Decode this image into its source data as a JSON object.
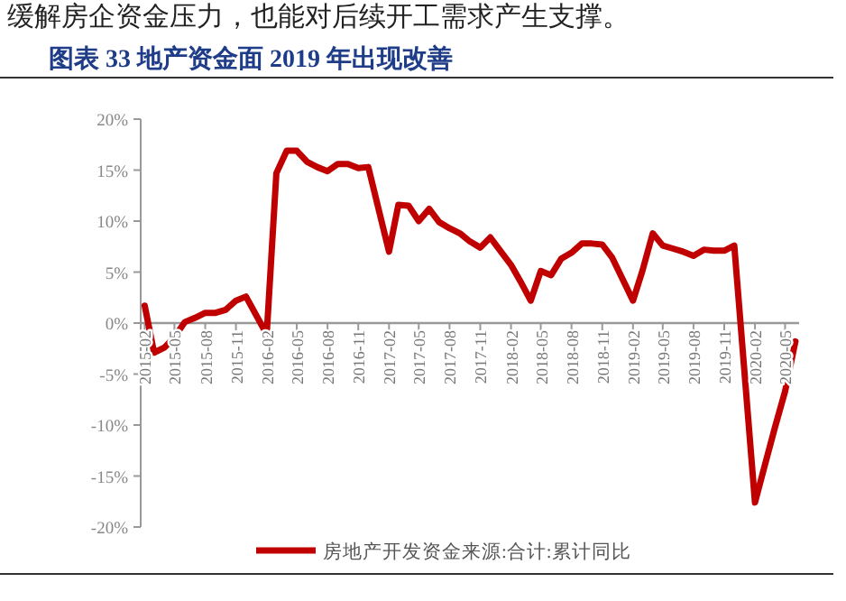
{
  "chart_data": {
    "type": "line",
    "title": "图表 33 地产资金面 2019 年出现改善",
    "annotations": [
      "缓解房企资金压力，也能对后续开工需求产生支撑。"
    ],
    "x": [
      "2015-02",
      "2015-03",
      "2015-04",
      "2015-05",
      "2015-06",
      "2015-07",
      "2015-08",
      "2015-09",
      "2015-10",
      "2015-11",
      "2015-12",
      "2016-02",
      "2016-03",
      "2016-04",
      "2016-05",
      "2016-06",
      "2016-07",
      "2016-08",
      "2016-09",
      "2016-10",
      "2016-11",
      "2016-12",
      "2017-02",
      "2017-03",
      "2017-04",
      "2017-05",
      "2017-06",
      "2017-07",
      "2017-08",
      "2017-09",
      "2017-10",
      "2017-11",
      "2017-12",
      "2018-02",
      "2018-03",
      "2018-04",
      "2018-05",
      "2018-06",
      "2018-07",
      "2018-08",
      "2018-09",
      "2018-10",
      "2018-11",
      "2018-12",
      "2019-02",
      "2019-03",
      "2019-04",
      "2019-05",
      "2019-06",
      "2019-07",
      "2019-08",
      "2019-09",
      "2019-10",
      "2019-11",
      "2019-12",
      "2020-02",
      "2020-03",
      "2020-04",
      "2020-05",
      "2020-06"
    ],
    "series": [
      {
        "name": "房地产开发资金来源:合计:累计同比",
        "color": "#c00000",
        "values": [
          1.7,
          -2.9,
          -2.4,
          -1.4,
          0.1,
          0.5,
          1.0,
          1.0,
          1.3,
          2.2,
          2.6,
          -1.1,
          14.7,
          16.9,
          16.9,
          15.8,
          15.3,
          14.9,
          15.6,
          15.6,
          15.2,
          15.3,
          7.0,
          11.6,
          11.5,
          10.0,
          11.2,
          9.9,
          9.3,
          8.8,
          8.0,
          7.4,
          8.4,
          5.7,
          4.1,
          2.2,
          5.1,
          4.7,
          6.3,
          6.9,
          7.8,
          7.8,
          7.7,
          6.4,
          2.2,
          5.1,
          8.8,
          7.6,
          7.3,
          7.0,
          6.6,
          7.2,
          7.1,
          7.1,
          7.6,
          -17.6,
          -14.0,
          -10.2,
          -6.7,
          -1.8
        ]
      }
    ],
    "xlim": [
      "2015-01-20",
      "2020-06-12"
    ],
    "xticks": [
      "2015-02",
      "2015-05",
      "2015-08",
      "2015-11",
      "2016-02",
      "2016-05",
      "2016-08",
      "2016-11",
      "2017-02",
      "2017-05",
      "2017-08",
      "2017-11",
      "2018-02",
      "2018-05",
      "2018-08",
      "2018-11",
      "2019-02",
      "2019-05",
      "2019-08",
      "2019-11",
      "2020-02",
      "2020-05"
    ],
    "ylim": [
      -20,
      20
    ],
    "yticks": [
      {
        "value": -20,
        "label": "-20%"
      },
      {
        "value": -15,
        "label": "-15%"
      },
      {
        "value": -10,
        "label": "-10%"
      },
      {
        "value": -5,
        "label": "-5%"
      },
      {
        "value": 0,
        "label": "0%"
      },
      {
        "value": 5,
        "label": "5%"
      },
      {
        "value": 10,
        "label": "10%"
      },
      {
        "value": 15,
        "label": "15%"
      },
      {
        "value": 20,
        "label": "20%"
      }
    ],
    "legend": "bottom",
    "line_style": "solid",
    "marker": "none"
  }
}
